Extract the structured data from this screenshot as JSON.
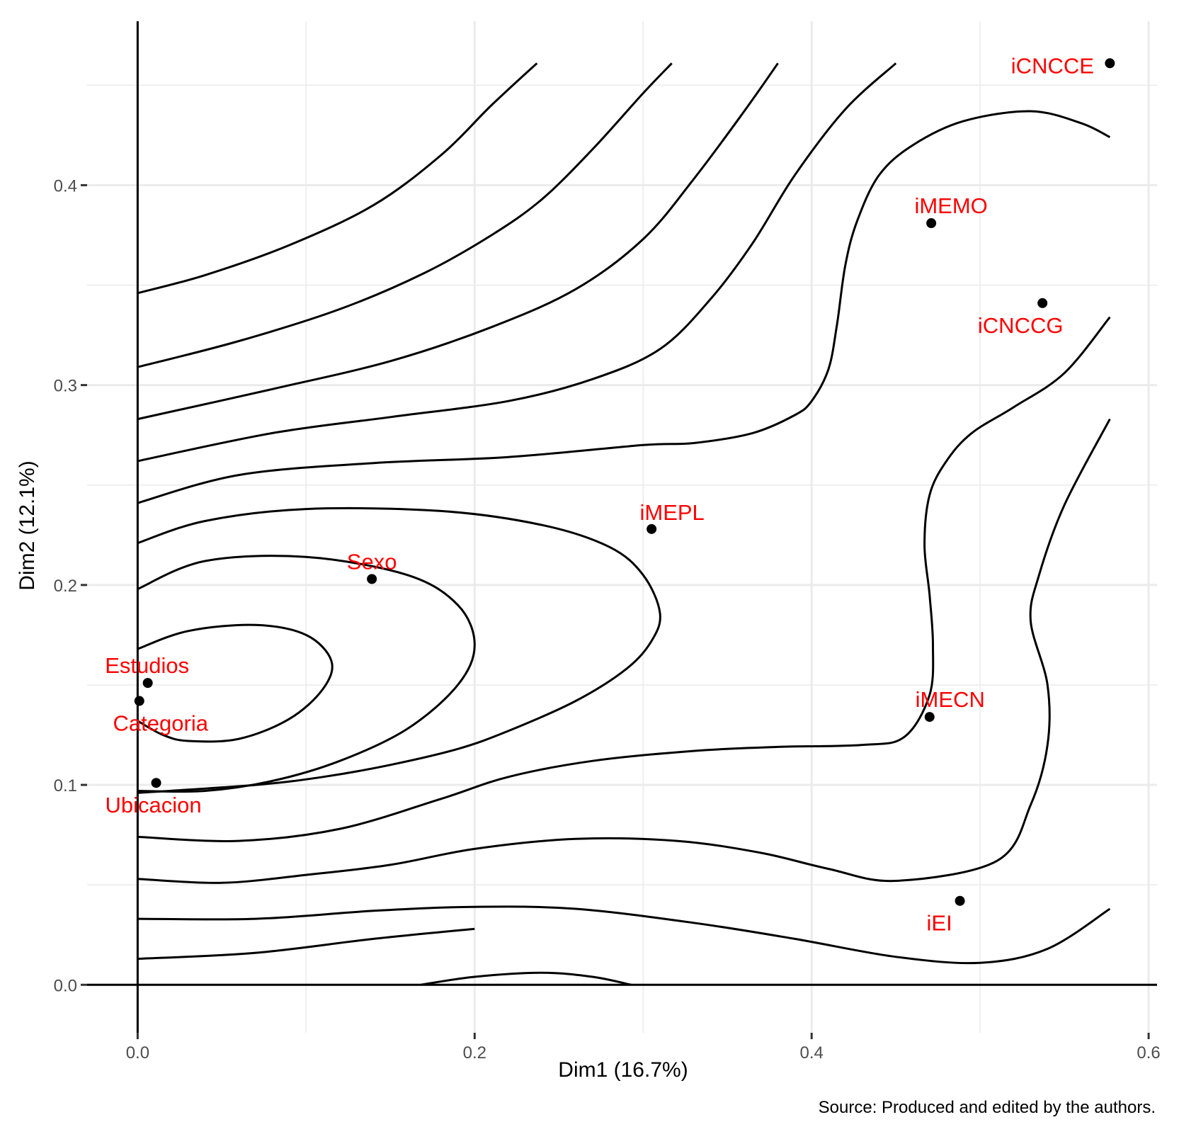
{
  "chart_data": {
    "type": "scatter",
    "title": "",
    "xlabel": "Dim1 (16.7%)",
    "ylabel": "Dim2 (12.1%)",
    "xlim": [
      -0.03,
      0.605
    ],
    "ylim": [
      -0.024,
      0.482
    ],
    "x_ticks": [
      0.0,
      0.2,
      0.4,
      0.6
    ],
    "y_ticks": [
      0.0,
      0.1,
      0.2,
      0.3,
      0.4
    ],
    "x_tick_labels": [
      "0.0",
      "0.2",
      "0.4",
      "0.6"
    ],
    "y_tick_labels": [
      "0.0",
      "0.1",
      "0.2",
      "0.3",
      "0.4"
    ],
    "grid": true,
    "points": [
      {
        "label": "iCNCCE",
        "x": 0.577,
        "y": 0.461
      },
      {
        "label": "iMEMO",
        "x": 0.471,
        "y": 0.381
      },
      {
        "label": "iCNCCG",
        "x": 0.537,
        "y": 0.341
      },
      {
        "label": "iMEPL",
        "x": 0.305,
        "y": 0.228
      },
      {
        "label": "Sexo",
        "x": 0.139,
        "y": 0.203
      },
      {
        "label": "Estudios",
        "x": 0.006,
        "y": 0.151
      },
      {
        "label": "Categoria",
        "x": 0.001,
        "y": 0.142
      },
      {
        "label": "Ubicacion",
        "x": 0.011,
        "y": 0.101
      },
      {
        "label": "iMECN",
        "x": 0.47,
        "y": 0.134
      },
      {
        "label": "iEI",
        "x": 0.488,
        "y": 0.042
      }
    ],
    "contours": [
      [
        [
          0.0,
          0.346
        ],
        [
          0.04,
          0.355
        ],
        [
          0.09,
          0.37
        ],
        [
          0.14,
          0.39
        ],
        [
          0.18,
          0.415
        ],
        [
          0.21,
          0.44
        ],
        [
          0.237,
          0.461
        ]
      ],
      [
        [
          0.0,
          0.309
        ],
        [
          0.06,
          0.322
        ],
        [
          0.12,
          0.338
        ],
        [
          0.17,
          0.356
        ],
        [
          0.21,
          0.375
        ],
        [
          0.24,
          0.393
        ],
        [
          0.27,
          0.418
        ],
        [
          0.3,
          0.446
        ],
        [
          0.317,
          0.461
        ]
      ],
      [
        [
          0.0,
          0.283
        ],
        [
          0.08,
          0.298
        ],
        [
          0.15,
          0.312
        ],
        [
          0.21,
          0.329
        ],
        [
          0.26,
          0.348
        ],
        [
          0.3,
          0.373
        ],
        [
          0.33,
          0.403
        ],
        [
          0.36,
          0.437
        ],
        [
          0.38,
          0.461
        ]
      ],
      [
        [
          0.0,
          0.262
        ],
        [
          0.08,
          0.276
        ],
        [
          0.15,
          0.284
        ],
        [
          0.22,
          0.292
        ],
        [
          0.27,
          0.303
        ],
        [
          0.31,
          0.318
        ],
        [
          0.34,
          0.343
        ],
        [
          0.365,
          0.371
        ],
        [
          0.39,
          0.405
        ],
        [
          0.42,
          0.438
        ],
        [
          0.45,
          0.461
        ]
      ],
      [
        [
          0.0,
          0.241
        ],
        [
          0.06,
          0.255
        ],
        [
          0.14,
          0.261
        ],
        [
          0.22,
          0.264
        ],
        [
          0.3,
          0.27
        ],
        [
          0.33,
          0.271
        ],
        [
          0.365,
          0.276
        ],
        [
          0.39,
          0.285
        ],
        [
          0.4,
          0.292
        ],
        [
          0.41,
          0.308
        ],
        [
          0.415,
          0.33
        ],
        [
          0.42,
          0.36
        ],
        [
          0.427,
          0.382
        ],
        [
          0.44,
          0.405
        ],
        [
          0.46,
          0.42
        ],
        [
          0.49,
          0.432
        ],
        [
          0.53,
          0.437
        ],
        [
          0.56,
          0.431
        ],
        [
          0.577,
          0.424
        ]
      ],
      [
        [
          0.0,
          0.221
        ],
        [
          0.04,
          0.232
        ],
        [
          0.1,
          0.238
        ],
        [
          0.18,
          0.237
        ],
        [
          0.24,
          0.23
        ],
        [
          0.28,
          0.219
        ],
        [
          0.3,
          0.205
        ],
        [
          0.31,
          0.186
        ],
        [
          0.305,
          0.172
        ],
        [
          0.29,
          0.158
        ],
        [
          0.26,
          0.142
        ],
        [
          0.22,
          0.127
        ],
        [
          0.19,
          0.118
        ],
        [
          0.15,
          0.11
        ],
        [
          0.11,
          0.104
        ],
        [
          0.07,
          0.1
        ],
        [
          0.0,
          0.096
        ]
      ],
      [
        [
          0.0,
          0.198
        ],
        [
          0.04,
          0.212
        ],
        [
          0.1,
          0.214
        ],
        [
          0.16,
          0.205
        ],
        [
          0.19,
          0.19
        ],
        [
          0.2,
          0.17
        ],
        [
          0.19,
          0.15
        ],
        [
          0.16,
          0.128
        ],
        [
          0.12,
          0.112
        ],
        [
          0.08,
          0.102
        ],
        [
          0.04,
          0.097
        ],
        [
          0.0,
          0.097
        ]
      ],
      [
        [
          0.0,
          0.168
        ],
        [
          0.03,
          0.177
        ],
        [
          0.07,
          0.18
        ],
        [
          0.1,
          0.175
        ],
        [
          0.115,
          0.162
        ],
        [
          0.11,
          0.148
        ],
        [
          0.09,
          0.133
        ],
        [
          0.06,
          0.123
        ],
        [
          0.03,
          0.122
        ],
        [
          0.015,
          0.125
        ],
        [
          0.0,
          0.132
        ]
      ],
      [
        [
          0.0,
          0.074
        ],
        [
          0.06,
          0.072
        ],
        [
          0.12,
          0.078
        ],
        [
          0.18,
          0.093
        ],
        [
          0.22,
          0.104
        ],
        [
          0.27,
          0.112
        ],
        [
          0.33,
          0.117
        ],
        [
          0.38,
          0.119
        ],
        [
          0.43,
          0.12
        ],
        [
          0.455,
          0.124
        ],
        [
          0.47,
          0.145
        ],
        [
          0.472,
          0.17
        ],
        [
          0.47,
          0.195
        ],
        [
          0.467,
          0.22
        ],
        [
          0.47,
          0.245
        ],
        [
          0.48,
          0.262
        ],
        [
          0.495,
          0.276
        ],
        [
          0.52,
          0.289
        ],
        [
          0.55,
          0.306
        ],
        [
          0.577,
          0.334
        ]
      ],
      [
        [
          0.0,
          0.053
        ],
        [
          0.05,
          0.051
        ],
        [
          0.1,
          0.055
        ],
        [
          0.15,
          0.06
        ],
        [
          0.2,
          0.068
        ],
        [
          0.26,
          0.073
        ],
        [
          0.32,
          0.072
        ],
        [
          0.37,
          0.066
        ],
        [
          0.41,
          0.058
        ],
        [
          0.45,
          0.052
        ],
        [
          0.51,
          0.062
        ],
        [
          0.53,
          0.09
        ],
        [
          0.54,
          0.12
        ],
        [
          0.54,
          0.15
        ],
        [
          0.53,
          0.182
        ],
        [
          0.535,
          0.205
        ],
        [
          0.55,
          0.24
        ],
        [
          0.577,
          0.283
        ]
      ],
      [
        [
          0.0,
          0.033
        ],
        [
          0.07,
          0.033
        ],
        [
          0.14,
          0.037
        ],
        [
          0.2,
          0.039
        ],
        [
          0.26,
          0.038
        ],
        [
          0.33,
          0.031
        ],
        [
          0.39,
          0.023
        ],
        [
          0.45,
          0.014
        ],
        [
          0.5,
          0.011
        ],
        [
          0.54,
          0.018
        ],
        [
          0.577,
          0.038
        ]
      ],
      [
        [
          0.0,
          0.013
        ],
        [
          0.07,
          0.016
        ],
        [
          0.14,
          0.023
        ],
        [
          0.2,
          0.028
        ]
      ],
      [
        [
          0.168,
          0.0
        ],
        [
          0.2,
          0.004
        ],
        [
          0.24,
          0.006
        ],
        [
          0.27,
          0.004
        ],
        [
          0.293,
          0.0
        ]
      ]
    ]
  },
  "source_note": "Source: Produced and edited by the authors."
}
